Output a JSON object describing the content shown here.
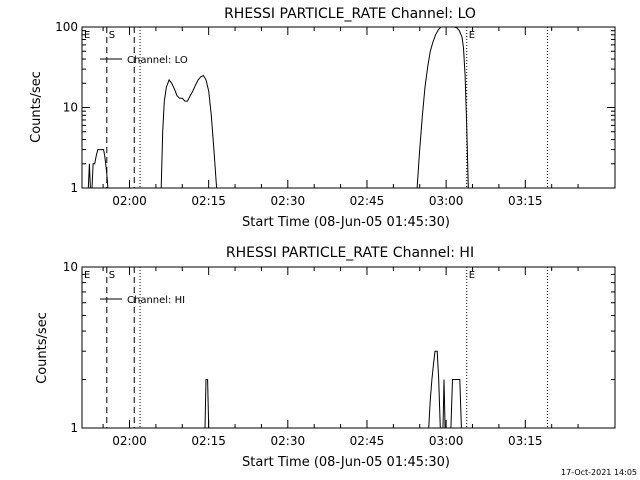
{
  "footer": {
    "timestamp": "17-Oct-2021 14:05"
  },
  "chart_data": [
    {
      "type": "line",
      "title": "RHESSI PARTICLE_RATE Channel: LO",
      "xlabel": "Start Time (08-Jun-05 01:45:30)",
      "ylabel": "Counts/sec",
      "yscale": "log",
      "ylim": [
        1,
        100
      ],
      "xlim_minutes": [
        -9,
        92
      ],
      "y_ticks": [
        {
          "v": 1,
          "label": "1"
        },
        {
          "v": 10,
          "label": "10"
        },
        {
          "v": 100,
          "label": "100"
        }
      ],
      "x_ticks": [
        {
          "m": 0,
          "label": "02:00"
        },
        {
          "m": 15,
          "label": "02:15"
        },
        {
          "m": 30,
          "label": "02:30"
        },
        {
          "m": 45,
          "label": "02:45"
        },
        {
          "m": 60,
          "label": "03:00"
        },
        {
          "m": 75,
          "label": "03:15"
        }
      ],
      "legend": {
        "position": "top-left",
        "entries": [
          "Channel: LO"
        ]
      },
      "markers": [
        {
          "label": "E",
          "m": -9,
          "style": "none"
        },
        {
          "label": "S",
          "m": -4.3,
          "style": "dashed"
        },
        {
          "label": "",
          "m": 0.9,
          "style": "dashed"
        },
        {
          "label": "",
          "m": 2.0,
          "style": "dotted"
        },
        {
          "label": "E",
          "m": 63.9,
          "style": "dotted"
        },
        {
          "label": "",
          "m": 79.2,
          "style": "dotted"
        }
      ],
      "series": [
        {
          "segments": [
            [
              [
                -7.8,
                1
              ],
              [
                -7.6,
                2
              ],
              [
                -7.4,
                1
              ],
              [
                -7.1,
                1
              ],
              [
                -6.9,
                2
              ],
              [
                -6.6,
                2
              ],
              [
                -6.3,
                2.5
              ],
              [
                -6.0,
                3
              ],
              [
                -4.9,
                3
              ],
              [
                -4.7,
                2.5
              ],
              [
                -4.5,
                2
              ],
              [
                -4.3,
                1.5
              ],
              [
                -4.1,
                1
              ]
            ],
            [
              [
                6.0,
                1
              ],
              [
                6.3,
                5
              ],
              [
                6.6,
                12
              ],
              [
                7.0,
                18
              ],
              [
                7.5,
                22
              ],
              [
                8.0,
                20
              ],
              [
                8.5,
                17
              ],
              [
                9.0,
                14
              ],
              [
                9.5,
                13
              ],
              [
                10.0,
                13
              ],
              [
                10.5,
                12
              ],
              [
                11.0,
                12
              ],
              [
                11.5,
                14
              ],
              [
                12.0,
                16
              ],
              [
                12.5,
                19
              ],
              [
                13.0,
                22
              ],
              [
                13.5,
                24
              ],
              [
                14.0,
                25
              ],
              [
                14.5,
                22
              ],
              [
                15.0,
                16
              ],
              [
                15.5,
                8
              ],
              [
                16.0,
                3
              ],
              [
                16.5,
                1
              ]
            ],
            [
              [
                54.5,
                1
              ],
              [
                55.0,
                3
              ],
              [
                55.5,
                8
              ],
              [
                56.0,
                18
              ],
              [
                56.5,
                32
              ],
              [
                57.0,
                50
              ],
              [
                57.5,
                65
              ],
              [
                58.0,
                80
              ],
              [
                58.5,
                92
              ],
              [
                59.0,
                100
              ],
              [
                59.5,
                105
              ],
              [
                60.0,
                103
              ],
              [
                60.5,
                104
              ],
              [
                61.0,
                100
              ],
              [
                61.5,
                103
              ],
              [
                62.0,
                98
              ],
              [
                62.5,
                90
              ],
              [
                63.0,
                75
              ],
              [
                63.3,
                55
              ],
              [
                63.6,
                25
              ],
              [
                63.9,
                6
              ],
              [
                64.2,
                1
              ]
            ]
          ]
        }
      ]
    },
    {
      "type": "line",
      "title": "RHESSI PARTICLE_RATE Channel: HI",
      "xlabel": "Start Time (08-Jun-05 01:45:30)",
      "ylabel": "Counts/sec",
      "yscale": "log",
      "ylim": [
        1,
        10
      ],
      "xlim_minutes": [
        -9,
        92
      ],
      "y_ticks": [
        {
          "v": 1,
          "label": "1"
        },
        {
          "v": 10,
          "label": "10"
        }
      ],
      "x_ticks": [
        {
          "m": 0,
          "label": "02:00"
        },
        {
          "m": 15,
          "label": "02:15"
        },
        {
          "m": 30,
          "label": "02:30"
        },
        {
          "m": 45,
          "label": "02:45"
        },
        {
          "m": 60,
          "label": "03:00"
        },
        {
          "m": 75,
          "label": "03:15"
        }
      ],
      "legend": {
        "position": "top-left",
        "entries": [
          "Channel: HI"
        ]
      },
      "markers": [
        {
          "label": "E",
          "m": -9,
          "style": "none"
        },
        {
          "label": "S",
          "m": -4.3,
          "style": "dashed"
        },
        {
          "label": "",
          "m": 0.9,
          "style": "dashed"
        },
        {
          "label": "",
          "m": 2.0,
          "style": "dotted"
        },
        {
          "label": "E",
          "m": 63.9,
          "style": "dotted"
        },
        {
          "label": "",
          "m": 79.2,
          "style": "dotted"
        }
      ],
      "series": [
        {
          "segments": [
            [
              [
                14.3,
                1
              ],
              [
                14.5,
                2
              ],
              [
                14.8,
                2
              ],
              [
                15.0,
                1
              ]
            ],
            [
              [
                56.7,
                1
              ],
              [
                57.0,
                1.5
              ],
              [
                57.3,
                2
              ],
              [
                57.6,
                2.5
              ],
              [
                57.9,
                3
              ],
              [
                58.3,
                3
              ],
              [
                58.6,
                2
              ],
              [
                58.9,
                1
              ]
            ],
            [
              [
                59.4,
                1
              ],
              [
                59.6,
                2
              ],
              [
                59.8,
                1
              ]
            ],
            [
              [
                60.9,
                1
              ],
              [
                61.2,
                2
              ],
              [
                62.6,
                2
              ],
              [
                62.9,
                1
              ]
            ]
          ]
        }
      ]
    }
  ]
}
